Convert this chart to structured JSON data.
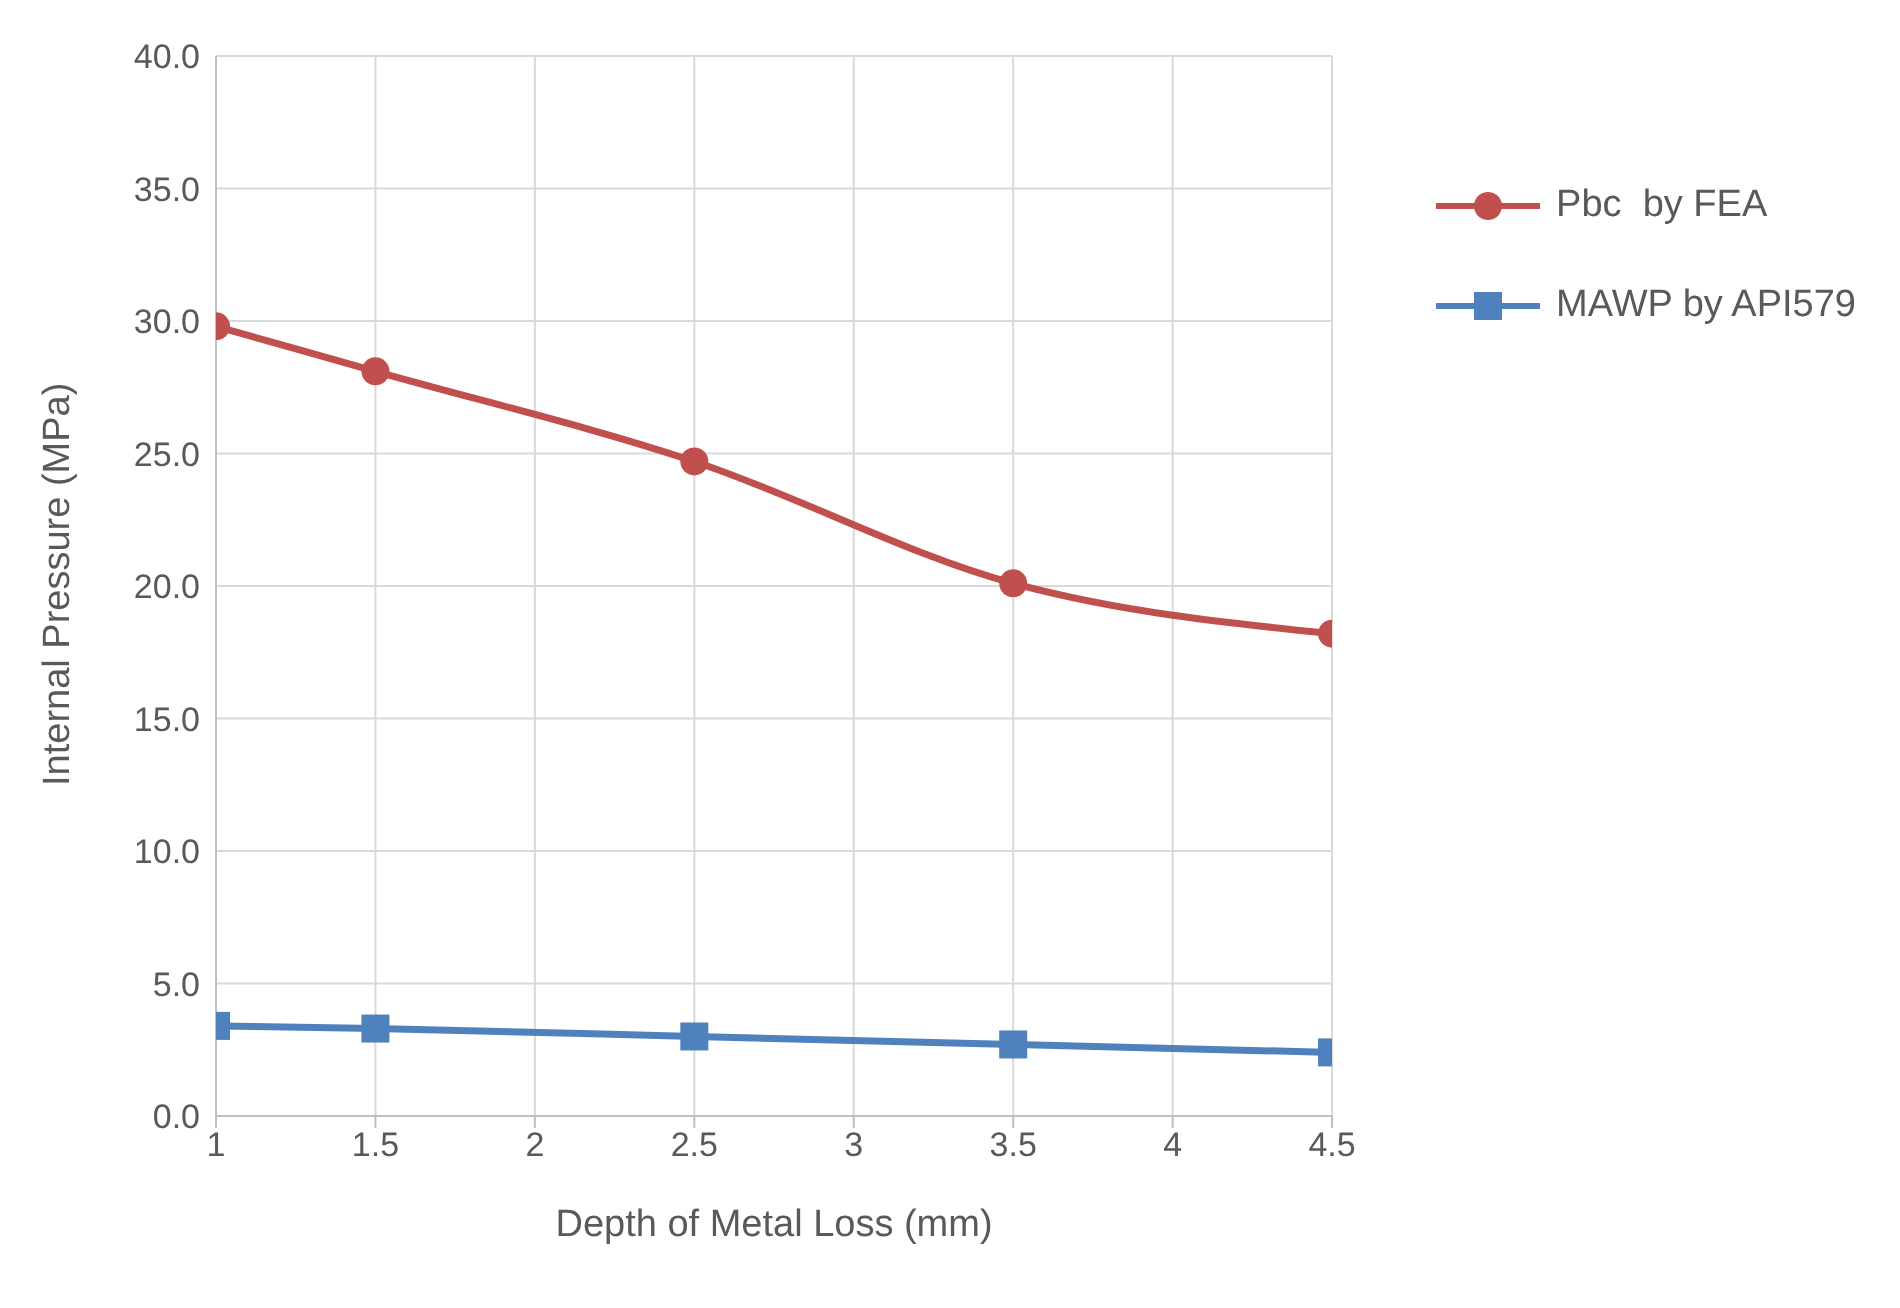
{
  "chart_data": {
    "type": "line",
    "xlabel": "Depth of Metal Loss (mm)",
    "ylabel": "Internal Pressure (MPa)",
    "x": [
      1,
      1.5,
      2.5,
      3.5,
      4.5
    ],
    "series": [
      {
        "name": "Pbc  by FEA",
        "color": "#c0504d",
        "marker": "circle",
        "values": [
          29.8,
          28.1,
          24.7,
          20.1,
          18.2
        ]
      },
      {
        "name": "MAWP by API579",
        "color": "#4f81bd",
        "marker": "square",
        "values": [
          3.4,
          3.3,
          3.0,
          2.7,
          2.4
        ]
      }
    ],
    "xlim": [
      1,
      4.5
    ],
    "xticks": [
      1,
      1.5,
      2,
      2.5,
      3,
      3.5,
      4,
      4.5
    ],
    "ylim": [
      0,
      40
    ],
    "yticks": [
      {
        "value": 0,
        "label": "0.0"
      },
      {
        "value": 5,
        "label": "5.0"
      },
      {
        "value": 10,
        "label": "10.0"
      },
      {
        "value": 15,
        "label": "15.0"
      },
      {
        "value": 20,
        "label": "20.0"
      },
      {
        "value": 25,
        "label": "25.0"
      },
      {
        "value": 30,
        "label": "30.0"
      },
      {
        "value": 35,
        "label": "35.0"
      },
      {
        "value": 40,
        "label": "40.0"
      }
    ],
    "grid": true,
    "legend": "top right",
    "line_style": "solid"
  }
}
